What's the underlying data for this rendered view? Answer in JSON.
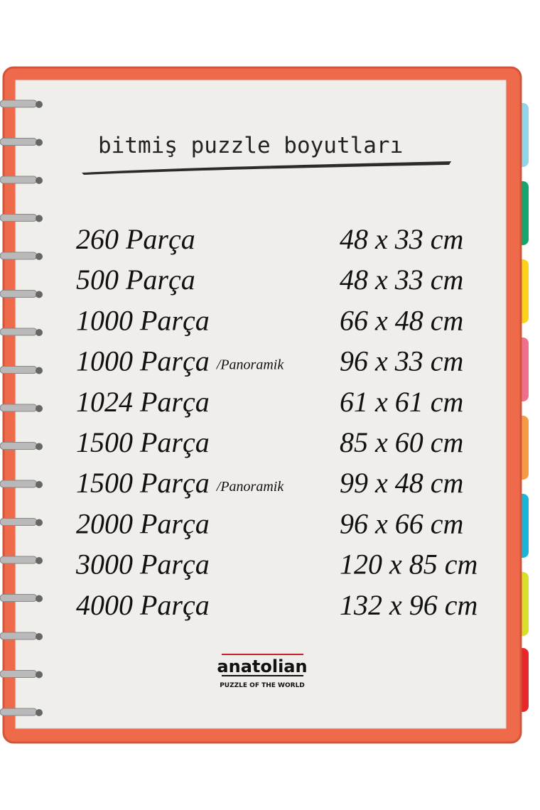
{
  "title": "bitmiş puzzle boyutları",
  "rows": [
    {
      "pieces": "260 Parça",
      "size": "48 x 33 cm"
    },
    {
      "pieces": "500 Parça",
      "size": "48 x 33 cm"
    },
    {
      "pieces": "1000 Parça",
      "size": "66 x 48 cm"
    },
    {
      "pieces": "1000 Parça",
      "note": "/Panoramik",
      "size": "96 x 33 cm"
    },
    {
      "pieces": "1024 Parça",
      "size": "61 x 61 cm"
    },
    {
      "pieces": "1500 Parça",
      "size": "85 x 60 cm"
    },
    {
      "pieces": "1500 Parça",
      "note": "/Panoramik",
      "size": "99 x 48 cm"
    },
    {
      "pieces": "2000 Parça",
      "size": "96 x 66 cm"
    },
    {
      "pieces": "3000 Parça",
      "size": "120 x 85 cm"
    },
    {
      "pieces": "4000 Parça",
      "size": "132 x 96 cm"
    }
  ],
  "logo": {
    "name": "anatolian",
    "tagline": "PUZZLE OF THE WORLD"
  }
}
